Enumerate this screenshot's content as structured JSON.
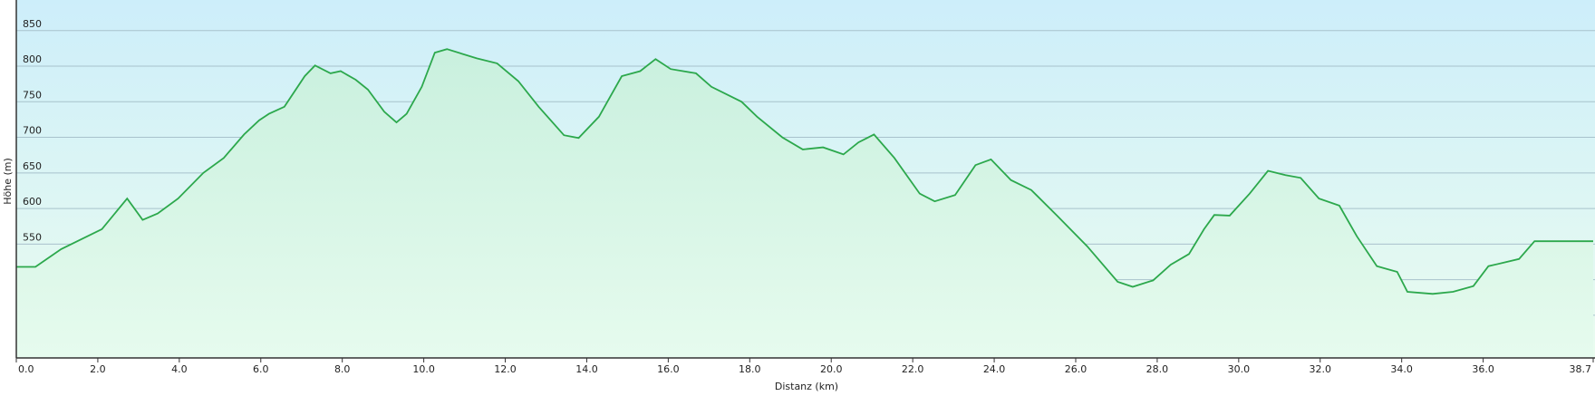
{
  "chart_data": {
    "type": "area",
    "xlabel": "Distanz  (km)",
    "ylabel": "Höhe (m)",
    "x": [
      0,
      0.47,
      1.1,
      2.1,
      2.72,
      3.1,
      3.47,
      3.97,
      4.59,
      5.09,
      5.59,
      5.96,
      6.2,
      6.58,
      7.08,
      7.33,
      7.71,
      7.96,
      8.33,
      8.63,
      9.03,
      9.33,
      9.58,
      9.95,
      10.27,
      10.57,
      11.3,
      11.8,
      12.32,
      12.82,
      13.44,
      13.8,
      14.3,
      14.86,
      15.31,
      15.69,
      16.06,
      16.68,
      17.06,
      17.8,
      18.18,
      18.8,
      19.3,
      19.8,
      20.3,
      20.67,
      21.05,
      21.55,
      22.17,
      22.54,
      23.04,
      23.54,
      23.92,
      24.41,
      24.91,
      25.54,
      26.28,
      27.03,
      27.4,
      27.9,
      28.33,
      28.78,
      29.15,
      29.4,
      29.78,
      30.27,
      30.72,
      31.15,
      31.52,
      31.97,
      32.47,
      32.9,
      33.39,
      33.89,
      34.14,
      34.76,
      35.26,
      35.76,
      36.13,
      36.51,
      36.88,
      37.26,
      38.7
    ],
    "values": [
      518,
      518,
      543,
      571,
      614,
      584,
      593,
      614,
      650,
      671,
      704,
      724,
      733,
      743,
      786,
      801,
      790,
      793,
      781,
      767,
      736,
      721,
      733,
      771,
      819,
      824,
      811,
      804,
      779,
      743,
      703,
      699,
      729,
      786,
      793,
      810,
      796,
      790,
      771,
      750,
      729,
      700,
      683,
      686,
      676,
      693,
      704,
      671,
      621,
      610,
      619,
      661,
      669,
      640,
      626,
      590,
      547,
      497,
      490,
      499,
      521,
      536,
      571,
      591,
      590,
      621,
      653,
      647,
      643,
      614,
      604,
      561,
      519,
      511,
      483,
      480,
      483,
      491,
      519,
      524,
      529,
      554,
      554
    ],
    "color": "#2ca84c",
    "xlim": [
      0,
      38.7
    ],
    "ylim": [
      390,
      893
    ],
    "xticks": [
      {
        "value": 0,
        "label": "0.0"
      },
      {
        "value": 2,
        "label": "2.0"
      },
      {
        "value": 4,
        "label": "4.0"
      },
      {
        "value": 6,
        "label": "6.0"
      },
      {
        "value": 8,
        "label": "8.0"
      },
      {
        "value": 10,
        "label": "10.0"
      },
      {
        "value": 12,
        "label": "12.0"
      },
      {
        "value": 14,
        "label": "14.0"
      },
      {
        "value": 16,
        "label": "16.0"
      },
      {
        "value": 18,
        "label": "18.0"
      },
      {
        "value": 20,
        "label": "20.0"
      },
      {
        "value": 22,
        "label": "22.0"
      },
      {
        "value": 24,
        "label": "24.0"
      },
      {
        "value": 26,
        "label": "26.0"
      },
      {
        "value": 28,
        "label": "28.0"
      },
      {
        "value": 30,
        "label": "30.0"
      },
      {
        "value": 32,
        "label": "32.0"
      },
      {
        "value": 34,
        "label": "34.0"
      },
      {
        "value": 36,
        "label": "36.0"
      },
      {
        "value": 38.7,
        "label": "38.7"
      }
    ],
    "yticks": [
      450,
      500,
      550,
      600,
      650,
      700,
      750,
      800,
      850
    ],
    "grid": true
  }
}
